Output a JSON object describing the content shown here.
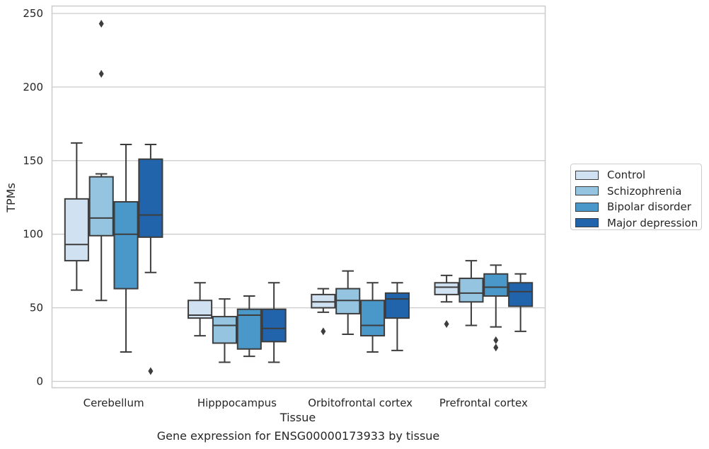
{
  "chart_data": {
    "type": "box",
    "title": "",
    "caption": "Gene expression for ENSG00000173933 by tissue",
    "xlabel": "Tissue",
    "ylabel": "TPMs",
    "ylim": [
      -5,
      255
    ],
    "yticks": [
      0,
      50,
      100,
      150,
      200,
      250
    ],
    "grid": "horizontal",
    "legend_position": "right",
    "categories": [
      "Cerebellum",
      "Hipppocampus",
      "Orbitofrontal cortex",
      "Prefrontal cortex"
    ],
    "series": [
      {
        "name": "Control",
        "color": "#d0e1f2",
        "boxes": [
          {
            "whisker_low": 62,
            "q1": 82,
            "median": 93,
            "q3": 124,
            "whisker_high": 162,
            "outliers": []
          },
          {
            "whisker_low": 31,
            "q1": 43,
            "median": 45,
            "q3": 55,
            "whisker_high": 67,
            "outliers": []
          },
          {
            "whisker_low": 47,
            "q1": 50,
            "median": 54,
            "q3": 59,
            "whisker_high": 63,
            "outliers": [
              34
            ]
          },
          {
            "whisker_low": 54,
            "q1": 59,
            "median": 64,
            "q3": 67,
            "whisker_high": 72,
            "outliers": [
              39
            ]
          }
        ]
      },
      {
        "name": "Schizophrenia",
        "color": "#94c4df",
        "boxes": [
          {
            "whisker_low": 55,
            "q1": 99,
            "median": 111,
            "q3": 139,
            "whisker_high": 141,
            "outliers": [
              209,
              243
            ]
          },
          {
            "whisker_low": 13,
            "q1": 26,
            "median": 38,
            "q3": 44,
            "whisker_high": 56,
            "outliers": []
          },
          {
            "whisker_low": 32,
            "q1": 46,
            "median": 55,
            "q3": 63,
            "whisker_high": 75,
            "outliers": []
          },
          {
            "whisker_low": 38,
            "q1": 54,
            "median": 60,
            "q3": 70,
            "whisker_high": 82,
            "outliers": []
          }
        ]
      },
      {
        "name": "Bipolar disorder",
        "color": "#4a98c9",
        "boxes": [
          {
            "whisker_low": 20,
            "q1": 63,
            "median": 100,
            "q3": 122,
            "whisker_high": 161,
            "outliers": []
          },
          {
            "whisker_low": 17,
            "q1": 22,
            "median": 45,
            "q3": 49,
            "whisker_high": 58,
            "outliers": []
          },
          {
            "whisker_low": 20,
            "q1": 31,
            "median": 38,
            "q3": 55,
            "whisker_high": 67,
            "outliers": []
          },
          {
            "whisker_low": 37,
            "q1": 58,
            "median": 64,
            "q3": 73,
            "whisker_high": 79,
            "outliers": [
              23,
              28
            ]
          }
        ]
      },
      {
        "name": "Major depression",
        "color": "#2164ab",
        "boxes": [
          {
            "whisker_low": 74,
            "q1": 98,
            "median": 113,
            "q3": 151,
            "whisker_high": 161,
            "outliers": [
              7
            ]
          },
          {
            "whisker_low": 13,
            "q1": 27,
            "median": 36,
            "q3": 49,
            "whisker_high": 67,
            "outliers": []
          },
          {
            "whisker_low": 21,
            "q1": 43,
            "median": 56,
            "q3": 60,
            "whisker_high": 67,
            "outliers": []
          },
          {
            "whisker_low": 34,
            "q1": 51,
            "median": 61,
            "q3": 67,
            "whisker_high": 73,
            "outliers": []
          }
        ]
      }
    ]
  }
}
